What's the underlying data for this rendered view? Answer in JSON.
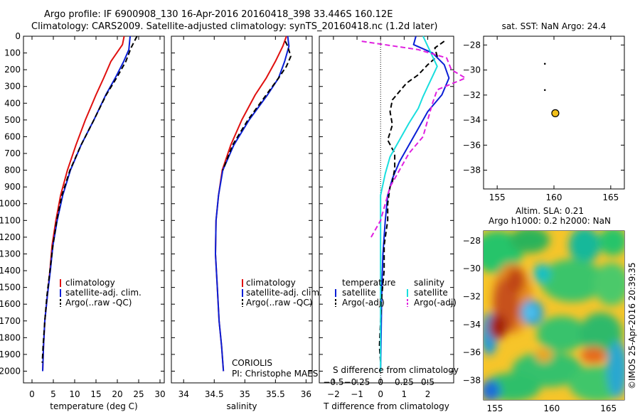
{
  "header": {
    "line1": "Argo profile: IF 6900908_130 16-Apr-2016 20160418_398 33.446S 160.12E",
    "line2": "Climatology: CARS2009. Satellite-adjusted climatology: synTS_20160418.nc (1.2d later)"
  },
  "colors": {
    "climatology": "#e0100f",
    "satellite": "#0a1fd6",
    "argo": "#000000",
    "salinity_satellite": "#19dede",
    "salinity_argo": "#e020e0",
    "float_marker": "#f2c01a"
  },
  "chart_data": [
    {
      "id": "temperature",
      "type": "line",
      "xlabel": "temperature (deg C)",
      "ylabel": "",
      "xlim": [
        -2,
        31
      ],
      "ylim": [
        2070,
        0
      ],
      "xticks": [
        0,
        5,
        10,
        15,
        20,
        25,
        30
      ],
      "yticks": [
        0,
        100,
        200,
        300,
        400,
        500,
        600,
        700,
        800,
        900,
        1000,
        1100,
        1200,
        1300,
        1400,
        1500,
        1600,
        1700,
        1800,
        1900,
        2000
      ],
      "legend": [
        "climatology",
        "satellite-adj. clim.",
        "Argo(..raw -QC)"
      ],
      "series": [
        {
          "name": "climatology",
          "style": "solid",
          "color": "#e0100f",
          "points": [
            [
              21.6,
              0
            ],
            [
              21.2,
              50
            ],
            [
              18.5,
              150
            ],
            [
              16.8,
              250
            ],
            [
              15.0,
              350
            ],
            [
              12.5,
              500
            ],
            [
              10.3,
              650
            ],
            [
              8.3,
              800
            ],
            [
              6.7,
              950
            ],
            [
              5.6,
              1100
            ],
            [
              4.7,
              1250
            ],
            [
              4.2,
              1400
            ],
            [
              3.6,
              1550
            ],
            [
              3.0,
              1700
            ],
            [
              2.7,
              1850
            ],
            [
              2.5,
              2000
            ]
          ]
        },
        {
          "name": "satellite-adj. clim.",
          "style": "solid",
          "color": "#0a1fd6",
          "points": [
            [
              23.0,
              0
            ],
            [
              22.7,
              80
            ],
            [
              21.5,
              150
            ],
            [
              19.5,
              250
            ],
            [
              17.3,
              350
            ],
            [
              14.5,
              500
            ],
            [
              11.5,
              650
            ],
            [
              9.0,
              800
            ],
            [
              7.2,
              950
            ],
            [
              5.9,
              1100
            ],
            [
              4.9,
              1250
            ],
            [
              4.3,
              1400
            ],
            [
              3.6,
              1550
            ],
            [
              3.0,
              1700
            ],
            [
              2.7,
              1850
            ],
            [
              2.5,
              2000
            ]
          ]
        },
        {
          "name": "Argo(..raw -QC)",
          "style": "dashed",
          "color": "#000000",
          "points": [
            [
              24.6,
              0
            ],
            [
              23.2,
              70
            ],
            [
              22.0,
              150
            ],
            [
              19.8,
              250
            ],
            [
              17.4,
              350
            ],
            [
              14.5,
              500
            ],
            [
              11.5,
              650
            ],
            [
              8.9,
              800
            ],
            [
              7.0,
              950
            ],
            [
              5.8,
              1100
            ],
            [
              4.9,
              1250
            ],
            [
              4.2,
              1400
            ],
            [
              3.5,
              1550
            ],
            [
              3.0,
              1700
            ],
            [
              2.6,
              1850
            ],
            [
              2.4,
              1950
            ]
          ]
        }
      ]
    },
    {
      "id": "salinity",
      "type": "line",
      "xlabel": "salinity",
      "xlim": [
        33.8,
        36.1
      ],
      "ylim": [
        2070,
        0
      ],
      "xticks": [
        34,
        34.5,
        35,
        35.5,
        36
      ],
      "legend": [
        "climatology",
        "satellite-adj. clim.",
        "Argo(..raw -QC)"
      ],
      "annotations": [
        "CORIOLIS",
        "PI: Christophe MAES"
      ],
      "series": [
        {
          "name": "climatology",
          "style": "solid",
          "color": "#e0100f",
          "points": [
            [
              35.68,
              0
            ],
            [
              35.62,
              60
            ],
            [
              35.5,
              150
            ],
            [
              35.35,
              250
            ],
            [
              35.17,
              350
            ],
            [
              34.95,
              500
            ],
            [
              34.77,
              650
            ],
            [
              34.63,
              800
            ],
            [
              34.57,
              950
            ],
            [
              34.53,
              1100
            ],
            [
              34.52,
              1300
            ],
            [
              34.55,
              1500
            ],
            [
              34.58,
              1700
            ],
            [
              34.62,
              1850
            ],
            [
              34.65,
              2000
            ]
          ]
        },
        {
          "name": "satellite-adj. clim.",
          "style": "solid",
          "color": "#0a1fd6",
          "points": [
            [
              35.7,
              0
            ],
            [
              35.72,
              60
            ],
            [
              35.65,
              150
            ],
            [
              35.55,
              250
            ],
            [
              35.37,
              350
            ],
            [
              35.07,
              500
            ],
            [
              34.82,
              650
            ],
            [
              34.64,
              800
            ],
            [
              34.57,
              950
            ],
            [
              34.53,
              1100
            ],
            [
              34.52,
              1300
            ],
            [
              34.55,
              1500
            ],
            [
              34.58,
              1700
            ],
            [
              34.62,
              1850
            ],
            [
              34.65,
              2000
            ]
          ]
        },
        {
          "name": "Argo(..raw -QC)",
          "style": "dashed",
          "color": "#000000",
          "points": [
            [
              35.66,
              30
            ],
            [
              35.7,
              60
            ],
            [
              35.75,
              120
            ],
            [
              35.68,
              180
            ],
            [
              35.55,
              250
            ],
            [
              35.35,
              350
            ],
            [
              35.05,
              500
            ],
            [
              34.8,
              650
            ],
            [
              34.64,
              800
            ]
          ]
        }
      ]
    },
    {
      "id": "difference",
      "type": "line",
      "xlabel": "T difference from climatology",
      "x2label": "S difference from climatology",
      "xlim": [
        -2.6,
        3.1
      ],
      "ylim": [
        2070,
        0
      ],
      "xticks": [
        -2,
        -1,
        0,
        1,
        2
      ],
      "x2ticks": [
        -0.5,
        -0.25,
        0,
        0.25,
        0.5
      ],
      "legend_temperature_title": "temperature",
      "legend_salinity_title": "salinity",
      "legend": [
        "satellite",
        "Argo(-adj)",
        "satellite",
        "Argo(-adj)"
      ],
      "series": [
        {
          "name": "satellite",
          "group": "temperature",
          "style": "solid",
          "color": "#0a1fd6",
          "points": [
            [
              1.5,
              0
            ],
            [
              1.4,
              50
            ],
            [
              2.2,
              100
            ],
            [
              2.7,
              170
            ],
            [
              2.9,
              250
            ],
            [
              2.6,
              350
            ],
            [
              2.0,
              450
            ],
            [
              1.6,
              550
            ],
            [
              1.2,
              650
            ],
            [
              0.8,
              750
            ],
            [
              0.5,
              850
            ],
            [
              0.3,
              950
            ],
            [
              0.2,
              1100
            ],
            [
              0.1,
              1300
            ],
            [
              0.05,
              1500
            ],
            [
              0.02,
              1800
            ],
            [
              0.0,
              2000
            ]
          ]
        },
        {
          "name": "Argo(-adj)",
          "group": "temperature",
          "style": "dashed",
          "color": "#000000",
          "points": [
            [
              2.7,
              30
            ],
            [
              2.3,
              70
            ],
            [
              2.4,
              120
            ],
            [
              2.0,
              170
            ],
            [
              1.6,
              230
            ],
            [
              1.1,
              280
            ],
            [
              0.8,
              330
            ],
            [
              0.5,
              380
            ],
            [
              0.4,
              450
            ],
            [
              0.5,
              530
            ],
            [
              0.3,
              620
            ],
            [
              0.6,
              700
            ],
            [
              0.6,
              790
            ],
            [
              0.5,
              870
            ],
            [
              0.4,
              900
            ],
            [
              0.3,
              1000
            ],
            [
              0.3,
              1100
            ],
            [
              0.15,
              1250
            ],
            [
              0.15,
              1400
            ],
            [
              0.05,
              1550
            ],
            [
              0.0,
              1700
            ],
            [
              -0.05,
              1850
            ],
            [
              0.0,
              1950
            ]
          ]
        },
        {
          "name": "satellite",
          "group": "salinity",
          "style": "solid",
          "color": "#19dede",
          "points": [
            [
              0.45,
              0
            ],
            [
              0.5,
              60
            ],
            [
              0.55,
              120
            ],
            [
              0.6,
              180
            ],
            [
              0.55,
              240
            ],
            [
              0.5,
              300
            ],
            [
              0.45,
              360
            ],
            [
              0.4,
              430
            ],
            [
              0.3,
              520
            ],
            [
              0.2,
              620
            ],
            [
              0.1,
              720
            ],
            [
              0.05,
              820
            ],
            [
              0.0,
              950
            ],
            [
              0.0,
              1200
            ],
            [
              0.0,
              1500
            ],
            [
              0.0,
              2000
            ]
          ]
        },
        {
          "name": "Argo(-adj)",
          "group": "salinity",
          "style": "dashed",
          "color": "#e020e0",
          "points": [
            [
              -0.2,
              30
            ],
            [
              0.4,
              80
            ],
            [
              0.7,
              130
            ],
            [
              0.75,
              200
            ],
            [
              0.9,
              250
            ],
            [
              0.6,
              320
            ],
            [
              0.55,
              400
            ],
            [
              0.5,
              500
            ],
            [
              0.45,
              600
            ],
            [
              0.3,
              700
            ],
            [
              0.2,
              800
            ],
            [
              0.1,
              900
            ],
            [
              0.05,
              1000
            ],
            [
              0.0,
              1100
            ],
            [
              -0.1,
              1200
            ]
          ]
        }
      ]
    },
    {
      "id": "map-sst",
      "type": "scatter",
      "title": "sat. SST: NaN Argo: 24.4",
      "xlim": [
        153.8,
        166.2
      ],
      "ylim": [
        -39.5,
        -27.3
      ],
      "xticks": [
        155,
        160,
        165
      ],
      "yticks": [
        -28,
        -30,
        -32,
        -34,
        -36,
        -38
      ],
      "points": [
        [
          159.2,
          -29.5
        ],
        [
          159.2,
          -31.6
        ],
        [
          160.12,
          -33.45
        ]
      ],
      "highlight": [
        160.12,
        -33.45
      ]
    },
    {
      "id": "map-sla",
      "type": "heatmap",
      "title_line1": "Altim. SLA: 0.21",
      "title_line2": "Argo h1000: 0.2 h2000: NaN",
      "xlim": [
        154.0,
        166.4
      ],
      "ylim": [
        -39.4,
        -27.3
      ],
      "xticks": [
        155,
        160,
        165
      ],
      "yticks": [
        -28,
        -30,
        -32,
        -34,
        -36,
        -38
      ],
      "points": [
        [
          159.2,
          -29.5
        ],
        [
          159.2,
          -31.6
        ]
      ],
      "highlight": [
        160.12,
        -33.45
      ]
    }
  ],
  "side_label": "©IMOS 25-Apr-2016 20:39:35"
}
